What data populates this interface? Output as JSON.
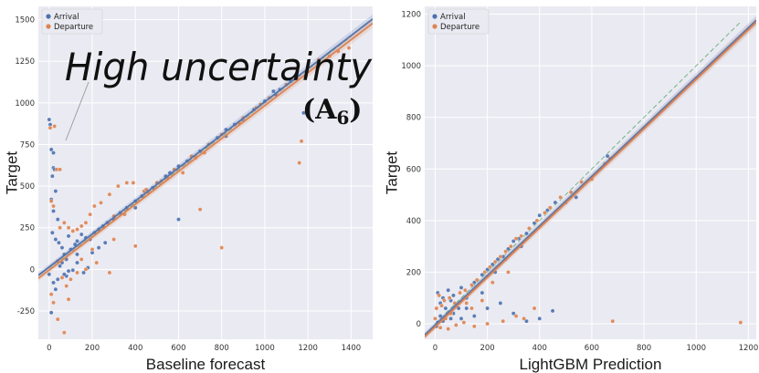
{
  "colors": {
    "arrival": "#4c72b0",
    "departure": "#dd8452",
    "plot_bg": "#eaeaf2",
    "grid": "#ffffff",
    "identity": "#55a868"
  },
  "chart_data": [
    {
      "type": "scatter",
      "xlabel": "Baseline forecast",
      "ylabel": "Target",
      "xlim": [
        -50,
        1500
      ],
      "ylim": [
        -420,
        1580
      ],
      "xticks": [
        0,
        200,
        400,
        600,
        800,
        1000,
        1200,
        1400
      ],
      "yticks": [
        -250,
        0,
        250,
        500,
        750,
        1000,
        1250,
        1500
      ],
      "legend": {
        "position": "top-left",
        "entries": [
          "Arrival",
          "Departure"
        ]
      },
      "grid": true,
      "annotation": {
        "text": "High uncertainty",
        "label": "(A",
        "label_sub": "6",
        "label_close": ")"
      },
      "identity_line": {
        "style": "dashed",
        "from": [
          0,
          0
        ],
        "to": [
          1400,
          1400
        ]
      },
      "series": [
        {
          "name": "Arrival",
          "regression": {
            "x": [
              -50,
              1500
            ],
            "y": [
              -36,
              1504
            ]
          },
          "points": [
            [
              0,
              900
            ],
            [
              5,
              870
            ],
            [
              10,
              720
            ],
            [
              20,
              700
            ],
            [
              20,
              610
            ],
            [
              15,
              560
            ],
            [
              25,
              600
            ],
            [
              30,
              470
            ],
            [
              10,
              420
            ],
            [
              20,
              350
            ],
            [
              40,
              300
            ],
            [
              15,
              220
            ],
            [
              30,
              180
            ],
            [
              45,
              160
            ],
            [
              60,
              130
            ],
            [
              70,
              90
            ],
            [
              80,
              60
            ],
            [
              100,
              120
            ],
            [
              90,
              200
            ],
            [
              120,
              150
            ],
            [
              130,
              170
            ],
            [
              150,
              210
            ],
            [
              170,
              190
            ],
            [
              190,
              180
            ],
            [
              210,
              220
            ],
            [
              230,
              240
            ],
            [
              250,
              260
            ],
            [
              270,
              280
            ],
            [
              300,
              300
            ],
            [
              330,
              340
            ],
            [
              360,
              370
            ],
            [
              400,
              410
            ],
            [
              430,
              440
            ],
            [
              460,
              470
            ],
            [
              500,
              520
            ],
            [
              540,
              560
            ],
            [
              560,
              580
            ],
            [
              600,
              620
            ],
            [
              640,
              650
            ],
            [
              700,
              710
            ],
            [
              740,
              750
            ],
            [
              780,
              790
            ],
            [
              820,
              800
            ],
            [
              860,
              870
            ],
            [
              900,
              900
            ],
            [
              950,
              960
            ],
            [
              1000,
              1010
            ],
            [
              1050,
              1050
            ],
            [
              1100,
              1110
            ],
            [
              1150,
              1150
            ],
            [
              1180,
              940
            ],
            [
              600,
              300
            ],
            [
              130,
              90
            ],
            [
              160,
              -20
            ],
            [
              80,
              -40
            ],
            [
              20,
              -80
            ],
            [
              30,
              -120
            ],
            [
              10,
              -260
            ],
            [
              0,
              -30
            ],
            [
              50,
              20
            ],
            [
              60,
              40
            ],
            [
              90,
              -10
            ],
            [
              130,
              40
            ],
            [
              200,
              100
            ],
            [
              230,
              130
            ],
            [
              260,
              160
            ],
            [
              180,
              10
            ],
            [
              110,
              -5
            ],
            [
              70,
              -30
            ],
            [
              40,
              -60
            ],
            [
              400,
              370
            ],
            [
              480,
              490
            ],
            [
              820,
              840
            ],
            [
              1070,
              1080
            ],
            [
              1120,
              1130
            ],
            [
              1040,
              1070
            ]
          ]
        },
        {
          "name": "Departure",
          "regression": {
            "x": [
              -50,
              1500
            ],
            "y": [
              -54,
              1478
            ]
          },
          "points": [
            [
              5,
              850
            ],
            [
              25,
              860
            ],
            [
              35,
              600
            ],
            [
              50,
              600
            ],
            [
              10,
              410
            ],
            [
              20,
              380
            ],
            [
              50,
              250
            ],
            [
              70,
              280
            ],
            [
              90,
              250
            ],
            [
              110,
              230
            ],
            [
              130,
              240
            ],
            [
              150,
              260
            ],
            [
              170,
              280
            ],
            [
              190,
              330
            ],
            [
              210,
              380
            ],
            [
              240,
              400
            ],
            [
              280,
              450
            ],
            [
              320,
              500
            ],
            [
              360,
              520
            ],
            [
              390,
              520
            ],
            [
              440,
              470
            ],
            [
              460,
              460
            ],
            [
              500,
              520
            ],
            [
              550,
              550
            ],
            [
              620,
              580
            ],
            [
              680,
              670
            ],
            [
              740,
              750
            ],
            [
              800,
              810
            ],
            [
              880,
              880
            ],
            [
              960,
              970
            ],
            [
              1020,
              1030
            ],
            [
              1100,
              1110
            ],
            [
              1160,
              640
            ],
            [
              1170,
              770
            ],
            [
              1340,
              1310
            ],
            [
              1390,
              1330
            ],
            [
              800,
              130
            ],
            [
              700,
              360
            ],
            [
              400,
              140
            ],
            [
              200,
              120
            ],
            [
              300,
              180
            ],
            [
              280,
              -20
            ],
            [
              220,
              40
            ],
            [
              170,
              0
            ],
            [
              130,
              -20
            ],
            [
              100,
              -60
            ],
            [
              80,
              -100
            ],
            [
              90,
              -180
            ],
            [
              70,
              -380
            ],
            [
              40,
              -300
            ],
            [
              20,
              -200
            ],
            [
              10,
              -150
            ],
            [
              60,
              -50
            ],
            [
              40,
              50
            ],
            [
              150,
              60
            ],
            [
              300,
              320
            ],
            [
              350,
              330
            ],
            [
              450,
              480
            ],
            [
              520,
              530
            ],
            [
              580,
              600
            ],
            [
              660,
              680
            ],
            [
              720,
              700
            ],
            [
              900,
              910
            ],
            [
              980,
              990
            ],
            [
              1150,
              1150
            ],
            [
              1250,
              1260
            ],
            [
              1300,
              1280
            ]
          ]
        }
      ]
    },
    {
      "type": "scatter",
      "xlabel": "LightGBM Prediction",
      "ylabel": "Target",
      "xlim": [
        -40,
        1230
      ],
      "ylim": [
        -60,
        1230
      ],
      "xticks": [
        0,
        200,
        400,
        600,
        800,
        1000,
        1200
      ],
      "yticks": [
        0,
        200,
        400,
        600,
        800,
        1000,
        1200
      ],
      "legend": {
        "position": "top-left",
        "entries": [
          "Arrival",
          "Departure"
        ]
      },
      "grid": true,
      "identity_line": {
        "style": "dashed",
        "from": [
          0,
          0
        ],
        "to": [
          1170,
          1170
        ]
      },
      "series": [
        {
          "name": "Arrival",
          "regression": {
            "x": [
              -40,
              1230
            ],
            "y": [
              -43,
              1176
            ]
          },
          "points": [
            [
              10,
              120
            ],
            [
              20,
              80
            ],
            [
              30,
              100
            ],
            [
              40,
              60
            ],
            [
              50,
              130
            ],
            [
              60,
              90
            ],
            [
              70,
              110
            ],
            [
              80,
              70
            ],
            [
              100,
              140
            ],
            [
              120,
              100
            ],
            [
              150,
              160
            ],
            [
              180,
              190
            ],
            [
              200,
              210
            ],
            [
              220,
              230
            ],
            [
              240,
              250
            ],
            [
              260,
              260
            ],
            [
              280,
              290
            ],
            [
              300,
              320
            ],
            [
              320,
              330
            ],
            [
              350,
              350
            ],
            [
              380,
              390
            ],
            [
              400,
              420
            ],
            [
              430,
              440
            ],
            [
              460,
              470
            ],
            [
              450,
              50
            ],
            [
              500,
              470
            ],
            [
              540,
              490
            ],
            [
              660,
              650
            ],
            [
              100,
              20
            ],
            [
              150,
              30
            ],
            [
              200,
              60
            ],
            [
              250,
              80
            ],
            [
              300,
              40
            ],
            [
              350,
              10
            ],
            [
              400,
              20
            ],
            [
              60,
              20
            ],
            [
              30,
              10
            ],
            [
              10,
              5
            ],
            [
              5,
              -10
            ],
            [
              120,
              60
            ],
            [
              180,
              120
            ],
            [
              230,
              200
            ],
            [
              270,
              250
            ],
            [
              330,
              300
            ],
            [
              70,
              40
            ],
            [
              90,
              60
            ],
            [
              20,
              30
            ]
          ]
        },
        {
          "name": "Departure",
          "regression": {
            "x": [
              -40,
              1230
            ],
            "y": [
              -51,
              1168
            ]
          },
          "points": [
            [
              5,
              60
            ],
            [
              15,
              110
            ],
            [
              25,
              70
            ],
            [
              35,
              90
            ],
            [
              55,
              100
            ],
            [
              75,
              80
            ],
            [
              95,
              120
            ],
            [
              115,
              130
            ],
            [
              140,
              150
            ],
            [
              160,
              170
            ],
            [
              190,
              200
            ],
            [
              210,
              220
            ],
            [
              230,
              240
            ],
            [
              250,
              260
            ],
            [
              270,
              280
            ],
            [
              290,
              300
            ],
            [
              310,
              330
            ],
            [
              330,
              340
            ],
            [
              360,
              370
            ],
            [
              390,
              400
            ],
            [
              420,
              430
            ],
            [
              440,
              450
            ],
            [
              480,
              490
            ],
            [
              520,
              510
            ],
            [
              560,
              550
            ],
            [
              600,
              560
            ],
            [
              650,
              620
            ],
            [
              670,
              640
            ],
            [
              680,
              10
            ],
            [
              1170,
              5
            ],
            [
              340,
              20
            ],
            [
              310,
              30
            ],
            [
              260,
              10
            ],
            [
              200,
              0
            ],
            [
              150,
              -10
            ],
            [
              110,
              5
            ],
            [
              80,
              -5
            ],
            [
              50,
              -20
            ],
            [
              20,
              -15
            ],
            [
              0,
              20
            ],
            [
              180,
              90
            ],
            [
              140,
              60
            ],
            [
              60,
              40
            ],
            [
              40,
              20
            ],
            [
              120,
              80
            ],
            [
              220,
              160
            ],
            [
              280,
              200
            ],
            [
              380,
              60
            ]
          ]
        }
      ]
    }
  ]
}
